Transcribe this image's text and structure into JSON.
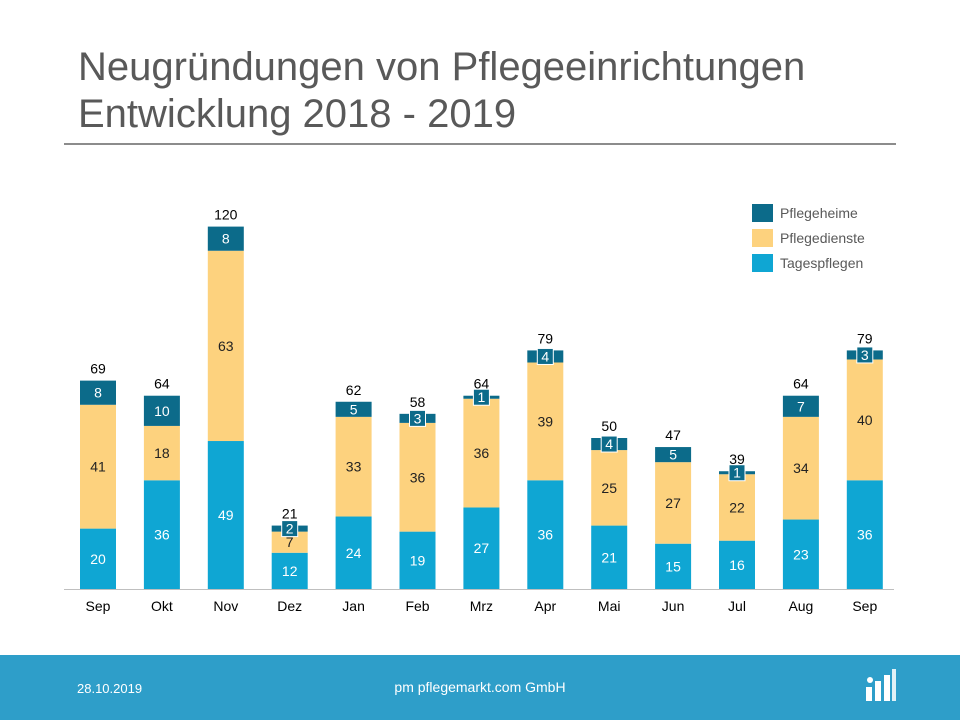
{
  "header": {
    "title_line1": "Neugründungen von Pflegeeinrichtungen",
    "title_line2": "Entwicklung 2018 - 2019"
  },
  "chart_data": {
    "type": "bar",
    "stacked": true,
    "categories": [
      "Sep",
      "Okt",
      "Nov",
      "Dez",
      "Jan",
      "Feb",
      "Mrz",
      "Apr",
      "Mai",
      "Jun",
      "Jul",
      "Aug",
      "Sep"
    ],
    "series": [
      {
        "name": "Tagespflegen",
        "color": "#0fa6d3",
        "label_color": "#ffffff",
        "values": [
          20,
          36,
          49,
          12,
          24,
          19,
          27,
          36,
          21,
          15,
          16,
          23,
          36
        ]
      },
      {
        "name": "Pflegedienste",
        "color": "#fdd27e",
        "label_color": "#222222",
        "values": [
          41,
          18,
          63,
          7,
          33,
          36,
          36,
          39,
          25,
          27,
          22,
          34,
          40
        ]
      },
      {
        "name": "Pflegeheime",
        "color": "#0c6b8a",
        "label_color": "#ffffff",
        "values": [
          8,
          10,
          8,
          2,
          5,
          3,
          1,
          4,
          4,
          5,
          1,
          7,
          3
        ]
      }
    ],
    "totals": [
      69,
      64,
      120,
      21,
      62,
      58,
      64,
      79,
      50,
      47,
      39,
      64,
      79
    ],
    "legend_order": [
      "Pflegeheime",
      "Pflegedienste",
      "Tagespflegen"
    ],
    "legend_position": "top-right",
    "ylim": [
      0,
      120
    ],
    "grid": false
  },
  "footer": {
    "date": "28.10.2019",
    "company": "pm pflegemarkt.com GmbH"
  },
  "logo_icon": "pflegemarkt-logo-icon"
}
